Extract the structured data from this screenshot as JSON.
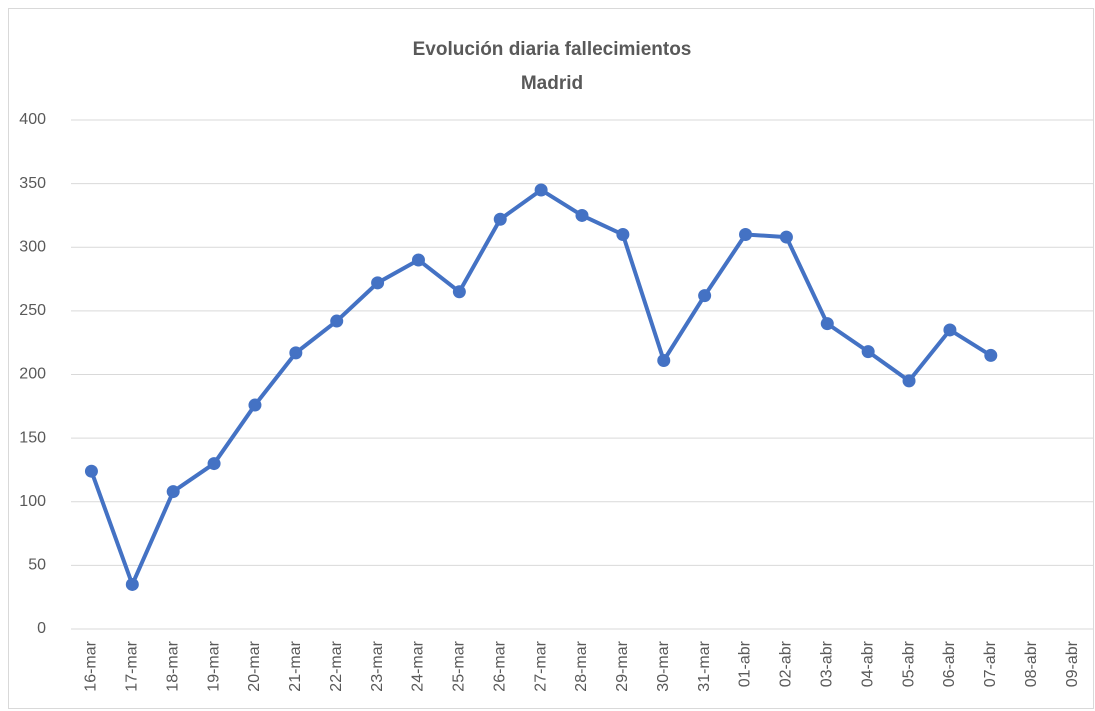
{
  "chart_data": {
    "type": "line",
    "title": "Evolución diaria fallecimientos",
    "subtitle": "Madrid",
    "categories": [
      "16-mar",
      "17-mar",
      "18-mar",
      "19-mar",
      "20-mar",
      "21-mar",
      "22-mar",
      "23-mar",
      "24-mar",
      "25-mar",
      "26-mar",
      "27-mar",
      "28-mar",
      "29-mar",
      "30-mar",
      "31-mar",
      "01-abr",
      "02-abr",
      "03-abr",
      "04-abr",
      "05-abr",
      "06-abr",
      "07-abr",
      "08-abr",
      "09-abr"
    ],
    "values": [
      124,
      35,
      108,
      130,
      176,
      217,
      242,
      272,
      290,
      265,
      322,
      345,
      325,
      310,
      211,
      262,
      310,
      308,
      240,
      218,
      195,
      235,
      215,
      null,
      null
    ],
    "color": "#4472c4",
    "ylim": [
      0,
      400
    ],
    "yticks": [
      0,
      50,
      100,
      150,
      200,
      250,
      300,
      350,
      400
    ],
    "grid": true
  }
}
